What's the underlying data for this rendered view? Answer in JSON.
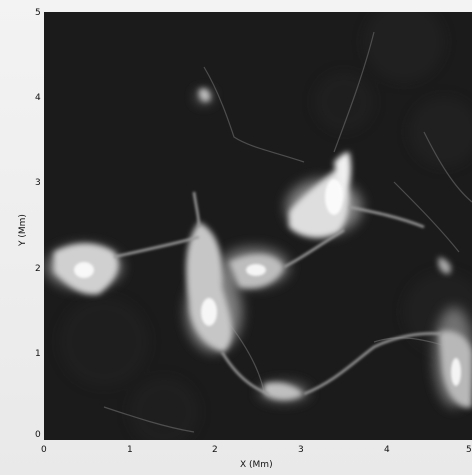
{
  "figure": {
    "x_axis_label": "X (Mm)",
    "y_axis_label": "Y (Mm)",
    "x_ticks": [
      "0",
      "1",
      "2",
      "3",
      "4",
      "5"
    ],
    "y_ticks": [
      "0",
      "1",
      "2",
      "3",
      "4",
      "5"
    ],
    "x_range": [
      0,
      5
    ],
    "y_range": [
      0,
      5
    ],
    "colormap": "grayscale",
    "background_color": "#1b1b1b"
  }
}
